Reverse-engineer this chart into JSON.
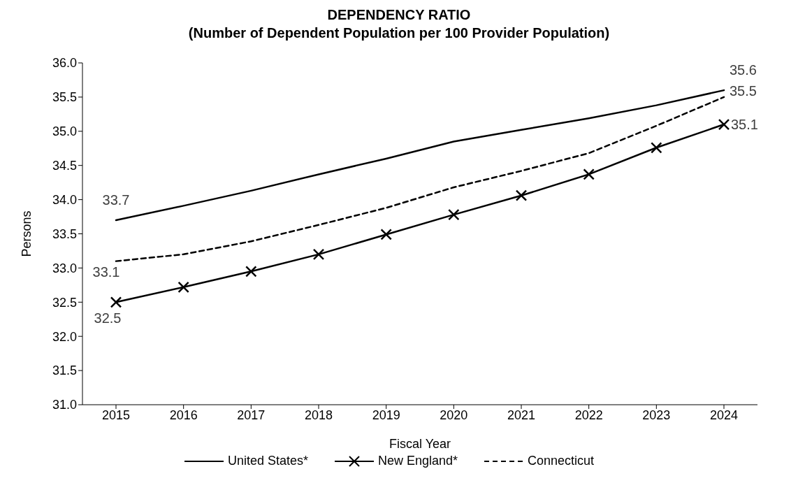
{
  "chart_data": {
    "type": "line",
    "title": "DEPENDENCY RATIO",
    "subtitle": "(Number of Dependent Population per 100 Provider Population)",
    "xlabel": "Fiscal Year",
    "ylabel": "Persons",
    "categories": [
      "2015",
      "2016",
      "2017",
      "2018",
      "2019",
      "2020",
      "2021",
      "2022",
      "2023",
      "2024"
    ],
    "series": [
      {
        "name": "United States*",
        "color": "#000000",
        "marker": "none",
        "line_style": "solid",
        "values": [
          33.7,
          33.91,
          34.13,
          34.37,
          34.6,
          34.85,
          35.02,
          35.19,
          35.38,
          35.6
        ],
        "value_labels": [
          "33.7",
          null,
          null,
          null,
          null,
          null,
          null,
          null,
          null,
          "35.6"
        ]
      },
      {
        "name": "New England*",
        "color": "#000000",
        "marker": "cross",
        "line_style": "solid",
        "values": [
          32.5,
          32.72,
          32.95,
          33.2,
          33.49,
          33.78,
          34.06,
          34.37,
          34.76,
          35.1
        ],
        "value_labels": [
          "32.5",
          null,
          null,
          null,
          null,
          null,
          null,
          null,
          null,
          "35.1"
        ]
      },
      {
        "name": "Connecticut",
        "color": "#000000",
        "marker": "none",
        "line_style": "dashed",
        "values": [
          33.1,
          33.2,
          33.39,
          33.63,
          33.88,
          34.18,
          34.42,
          34.68,
          35.08,
          35.5
        ],
        "value_labels": [
          "33.1",
          null,
          null,
          null,
          null,
          null,
          null,
          null,
          null,
          "35.5"
        ]
      }
    ],
    "ylim": [
      31,
      36
    ],
    "yticks": [
      {
        "value": 31,
        "label": "31.0"
      },
      {
        "value": 31.5,
        "label": "31.5"
      },
      {
        "value": 32,
        "label": "32.0"
      },
      {
        "value": 32.5,
        "label": "32.5"
      },
      {
        "value": 33,
        "label": "33.0"
      },
      {
        "value": 33.5,
        "label": "33.5"
      },
      {
        "value": 34,
        "label": "34.0"
      },
      {
        "value": 34.5,
        "label": "34.5"
      },
      {
        "value": 35,
        "label": "35.0"
      },
      {
        "value": 35.5,
        "label": "35.5"
      },
      {
        "value": 36,
        "label": "36.0"
      }
    ],
    "grid": false,
    "legend": "bottom"
  }
}
